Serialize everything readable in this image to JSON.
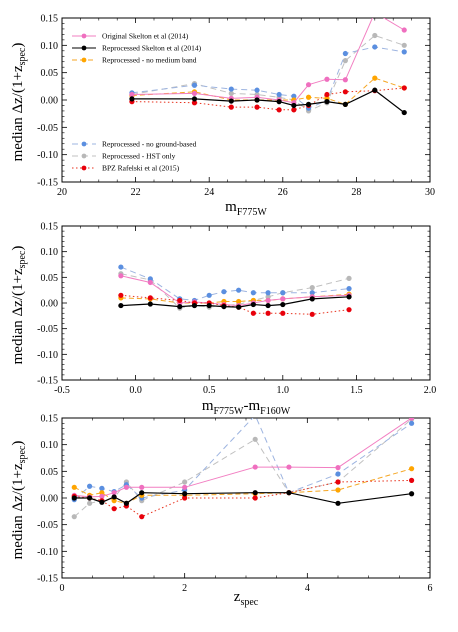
{
  "series_styles": [
    {
      "name": "Original Skelton et al (2014)",
      "color": "#f27fc2",
      "dash": "",
      "marker": "#ef6fbf"
    },
    {
      "name": "Reprocessed Skelton et al (2014)",
      "color": "#000000",
      "dash": "",
      "marker": "#000000"
    },
    {
      "name": "Reprocessed - no medium band",
      "color": "#f5a623",
      "dash": "5,3",
      "marker": "#ffa500"
    },
    {
      "name": "Reprocessed - no ground-based",
      "color": "#9db4e0",
      "dash": "6,4",
      "marker": "#5b8fe0"
    },
    {
      "name": "Reprocessed - HST only",
      "color": "#c0c0c0",
      "dash": "6,4",
      "marker": "#b8b8b8"
    },
    {
      "name": "BPZ Rafelski et al (2015)",
      "color": "#e8301c",
      "dash": "1.5,2.5",
      "marker": "#e8000b"
    }
  ],
  "chart_data": [
    {
      "type": "line",
      "xlabel_main": "m",
      "xlabel_sub": "F775W",
      "ylabel_pre": "median Δz/(1+z",
      "ylabel_sub": "spec",
      "ylabel_post": ")",
      "xlim": [
        20,
        30
      ],
      "ylim": [
        -0.15,
        0.15
      ],
      "xticks": [
        "20",
        "22",
        "24",
        "26",
        "28",
        "30"
      ],
      "xtick_values": [
        20,
        22,
        24,
        26,
        28,
        30
      ],
      "yticks": [
        "0.15",
        "0.10",
        "0.05",
        "0.00",
        "-0.05",
        "-0.10",
        "-0.15"
      ],
      "ytick_values": [
        0.15,
        0.1,
        0.05,
        0.0,
        -0.05,
        -0.1,
        -0.15
      ],
      "legend_groups": [
        {
          "position": "top-left",
          "series": [
            0,
            1,
            2
          ]
        },
        {
          "position": "bottom-left",
          "series": [
            3,
            4,
            5
          ]
        }
      ],
      "series": [
        {
          "x": [
            21.9,
            23.6,
            24.6,
            25.3,
            25.9,
            26.3,
            26.7,
            27.2,
            27.7,
            28.5,
            29.3
          ],
          "y": [
            0.01,
            0.012,
            0.003,
            0.005,
            0.0,
            -0.005,
            0.028,
            0.038,
            0.037,
            0.16,
            0.128
          ]
        },
        {
          "x": [
            21.9,
            23.6,
            24.6,
            25.3,
            25.9,
            26.3,
            26.7,
            27.2,
            27.7,
            28.5,
            29.3
          ],
          "y": [
            0.002,
            0.002,
            -0.002,
            0.0,
            -0.003,
            -0.01,
            -0.008,
            -0.003,
            -0.008,
            0.018,
            -0.023
          ]
        },
        {
          "x": [
            21.9,
            23.6,
            24.6,
            25.3,
            25.9,
            26.3,
            26.7,
            27.2,
            27.7,
            28.5,
            29.3
          ],
          "y": [
            0.008,
            0.015,
            0.0,
            0.0,
            0.0,
            0.0,
            0.005,
            0.003,
            -0.008,
            0.04,
            0.022
          ]
        },
        {
          "x": [
            21.9,
            23.6,
            24.6,
            25.3,
            25.9,
            26.3,
            26.7,
            27.2,
            27.7,
            28.5,
            29.3
          ],
          "y": [
            0.013,
            0.027,
            0.02,
            0.018,
            0.01,
            0.007,
            -0.015,
            -0.001,
            0.085,
            0.097,
            0.088
          ]
        },
        {
          "x": [
            21.9,
            23.6,
            24.6,
            25.3,
            25.9,
            26.3,
            26.7,
            27.2,
            27.7,
            28.5,
            29.3
          ],
          "y": [
            0.01,
            0.03,
            0.012,
            0.01,
            0.005,
            0.0,
            -0.02,
            -0.005,
            0.072,
            0.118,
            0.1
          ]
        },
        {
          "x": [
            21.9,
            23.6,
            24.6,
            25.3,
            25.9,
            26.3,
            26.7,
            27.2,
            27.7,
            28.5,
            29.3
          ],
          "y": [
            -0.003,
            -0.005,
            -0.013,
            -0.013,
            -0.018,
            -0.018,
            -0.01,
            0.01,
            0.015,
            0.017,
            0.022
          ]
        }
      ]
    },
    {
      "type": "line",
      "xlabel_main": "m",
      "xlabel_sub": "F775W",
      "xlabel_mid": "-m",
      "xlabel_sub2": "F160W",
      "ylabel_pre": "median Δz/(1+z",
      "ylabel_sub": "spec",
      "ylabel_post": ")",
      "xlim": [
        -0.5,
        2.0
      ],
      "ylim": [
        -0.15,
        0.15
      ],
      "xticks": [
        "-0.5",
        "0.0",
        "0.5",
        "1.0",
        "1.5",
        "2.0"
      ],
      "xtick_values": [
        -0.5,
        0.0,
        0.5,
        1.0,
        1.5,
        2.0
      ],
      "yticks": [
        "0.15",
        "0.10",
        "0.05",
        "0.00",
        "-0.05",
        "-0.10",
        "-0.15"
      ],
      "ytick_values": [
        0.15,
        0.1,
        0.05,
        0.0,
        -0.05,
        -0.1,
        -0.15
      ],
      "series": [
        {
          "x": [
            -0.1,
            0.1,
            0.3,
            0.4,
            0.5,
            0.6,
            0.7,
            0.8,
            0.9,
            1.0,
            1.2,
            1.45
          ],
          "y": [
            0.053,
            0.04,
            0.0,
            0.002,
            0.0,
            -0.003,
            -0.005,
            0.0,
            0.005,
            0.008,
            0.012,
            0.015
          ]
        },
        {
          "x": [
            -0.1,
            0.1,
            0.3,
            0.4,
            0.5,
            0.6,
            0.7,
            0.8,
            0.9,
            1.0,
            1.2,
            1.45
          ],
          "y": [
            -0.005,
            -0.002,
            -0.007,
            -0.005,
            -0.005,
            -0.007,
            -0.008,
            -0.003,
            -0.005,
            -0.003,
            0.008,
            0.012
          ]
        },
        {
          "x": [
            -0.1,
            0.1,
            0.3,
            0.4,
            0.5,
            0.6,
            0.7,
            0.8,
            0.9,
            1.0,
            1.2,
            1.45
          ],
          "y": [
            0.01,
            0.008,
            0.0,
            0.0,
            0.0,
            0.003,
            0.003,
            0.005,
            0.005,
            0.008,
            0.012,
            0.017
          ]
        },
        {
          "x": [
            -0.1,
            0.1,
            0.3,
            0.4,
            0.5,
            0.6,
            0.7,
            0.8,
            0.9,
            1.0,
            1.2,
            1.45
          ],
          "y": [
            0.07,
            0.047,
            0.008,
            0.005,
            0.015,
            0.022,
            0.025,
            0.02,
            0.02,
            0.02,
            0.02,
            0.028
          ]
        },
        {
          "x": [
            -0.1,
            0.1,
            0.3,
            0.4,
            0.5,
            0.6,
            0.7,
            0.8,
            0.9,
            1.0,
            1.2,
            1.45
          ],
          "y": [
            0.057,
            0.045,
            -0.01,
            -0.005,
            -0.008,
            -0.005,
            -0.003,
            0.005,
            0.012,
            0.02,
            0.03,
            0.048
          ]
        },
        {
          "x": [
            -0.1,
            0.1,
            0.3,
            0.4,
            0.5,
            0.6,
            0.7,
            0.8,
            0.9,
            1.0,
            1.2,
            1.45
          ],
          "y": [
            0.015,
            0.01,
            0.005,
            0.0,
            0.0,
            -0.005,
            -0.008,
            -0.02,
            -0.02,
            -0.02,
            -0.022,
            -0.013
          ]
        }
      ]
    },
    {
      "type": "line",
      "xlabel_main": "z",
      "xlabel_sub": "spec",
      "ylabel_pre": "median Δz/(1+z",
      "ylabel_sub": "spec",
      "ylabel_post": ")",
      "xlim": [
        0,
        6
      ],
      "ylim": [
        -0.15,
        0.15
      ],
      "xticks": [
        "0",
        "2",
        "4",
        "6"
      ],
      "xtick_values": [
        0,
        2,
        4,
        6
      ],
      "yticks": [
        "0.15",
        "0.10",
        "0.05",
        "0.00",
        "-0.05",
        "-0.10",
        "-0.15"
      ],
      "ytick_values": [
        0.15,
        0.1,
        0.05,
        0.0,
        -0.05,
        -0.1,
        -0.15
      ],
      "series": [
        {
          "x": [
            0.2,
            0.45,
            0.65,
            0.85,
            1.05,
            1.3,
            2.0,
            3.15,
            3.7,
            4.5,
            5.7
          ],
          "y": [
            0.005,
            0.002,
            0.003,
            0.01,
            0.02,
            0.02,
            0.02,
            0.058,
            0.058,
            0.057,
            0.15
          ]
        },
        {
          "x": [
            0.2,
            0.45,
            0.65,
            0.85,
            1.05,
            1.3,
            2.0,
            3.15,
            3.7,
            4.5,
            5.7
          ],
          "y": [
            0.0,
            0.0,
            -0.008,
            0.002,
            -0.01,
            0.01,
            0.008,
            0.01,
            0.01,
            -0.01,
            0.008
          ]
        },
        {
          "x": [
            0.2,
            0.45,
            0.65,
            0.85,
            1.05,
            1.3,
            2.0,
            3.15,
            3.7,
            4.5,
            5.7
          ],
          "y": [
            0.02,
            0.005,
            0.01,
            -0.005,
            -0.01,
            0.005,
            0.005,
            0.008,
            0.01,
            0.015,
            0.055
          ]
        },
        {
          "x": [
            0.2,
            0.45,
            0.65,
            0.85,
            1.05,
            1.3,
            2.0,
            3.15,
            3.7,
            4.5,
            5.7
          ],
          "y": [
            -0.003,
            0.022,
            0.018,
            0.012,
            0.025,
            0.0,
            0.015,
            0.155,
            0.01,
            0.045,
            0.14
          ]
        },
        {
          "x": [
            0.2,
            0.45,
            0.65,
            0.85,
            1.05,
            1.3,
            2.0,
            3.15,
            3.7,
            4.5,
            5.7
          ],
          "y": [
            -0.035,
            -0.01,
            -0.005,
            0.0,
            0.03,
            -0.005,
            0.03,
            0.11,
            0.01,
            0.03,
            0.148
          ]
        },
        {
          "x": [
            0.2,
            0.45,
            0.65,
            0.85,
            1.05,
            1.3,
            2.0,
            3.15,
            3.7,
            4.5,
            5.7
          ],
          "y": [
            0.003,
            0.0,
            -0.005,
            -0.02,
            -0.015,
            -0.035,
            0.0,
            0.0,
            0.01,
            0.03,
            0.033
          ]
        }
      ]
    }
  ]
}
